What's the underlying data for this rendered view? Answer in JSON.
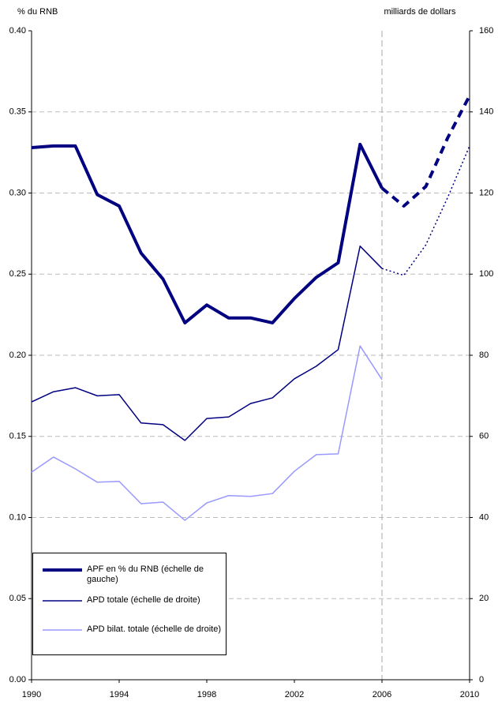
{
  "chart_data": {
    "type": "line",
    "ylabel": "% du RNB",
    "y2label": "milliards de dollars",
    "x": [
      1990,
      1991,
      1992,
      1993,
      1994,
      1995,
      1996,
      1997,
      1998,
      1999,
      2000,
      2001,
      2002,
      2003,
      2004,
      2005,
      2006,
      2007,
      2008,
      2009,
      2010
    ],
    "xlim": [
      1990,
      2010
    ],
    "xticks": [
      1990,
      1994,
      1998,
      2002,
      2006,
      2010
    ],
    "ylim": [
      0,
      0.4
    ],
    "yticks": [
      {
        "value": 0,
        "label": "0.00"
      },
      0.05,
      {
        "value": 0.1,
        "label": "0.10"
      },
      0.15,
      {
        "value": 0.2,
        "label": "0.20"
      },
      0.25,
      {
        "value": 0.3,
        "label": "0.30"
      },
      0.35,
      {
        "value": 0.4,
        "label": "0.40"
      }
    ],
    "y2lim": [
      0,
      160
    ],
    "y2ticks": [
      0,
      20,
      40,
      60,
      80,
      100,
      120,
      140,
      160
    ],
    "grid": true,
    "vline": 2006,
    "series": [
      {
        "name": "APF en % du RNB (échelle de gauche)",
        "color": "#000080",
        "axis": "y",
        "line_width": 4,
        "dash": "solid",
        "values": [
          0.328,
          0.329,
          0.329,
          0.299,
          0.292,
          0.263,
          0.247,
          0.22,
          0.231,
          0.223,
          0.223,
          0.22,
          0.235,
          0.248,
          0.257,
          0.33,
          0.303,
          null,
          null,
          null,
          null
        ]
      },
      {
        "name": "APD totale (échelle de droite)",
        "color": "#000080",
        "axis": "y2",
        "line_width": 1.5,
        "dash": "solid",
        "values": [
          68.5,
          71,
          72,
          70,
          70.3,
          63.3,
          62.9,
          59,
          64.4,
          64.8,
          68.1,
          69.5,
          74.2,
          77.3,
          81.4,
          106.9,
          101.4,
          null,
          null,
          null,
          null
        ]
      },
      {
        "name": "APD bilat. totale (échelle de droite)",
        "color": "#9999ff",
        "axis": "y2",
        "line_width": 1.5,
        "dash": "solid",
        "values": [
          51.2,
          54.9,
          52,
          48.7,
          48.9,
          43.4,
          43.8,
          39.3,
          43.6,
          45.4,
          45.2,
          45.9,
          51.4,
          55.5,
          55.7,
          82.3,
          74,
          null,
          null,
          null,
          null
        ]
      },
      {
        "color": "#000080",
        "axis": "y",
        "line_width": 4,
        "dash": "dashed",
        "values": [
          null,
          null,
          null,
          null,
          null,
          null,
          null,
          null,
          null,
          null,
          null,
          null,
          null,
          null,
          null,
          null,
          0.303,
          0.292,
          0.304,
          0.334,
          0.36
        ]
      },
      {
        "color": "#000080",
        "axis": "y2",
        "line_width": 1.5,
        "dash": "dotted",
        "values": [
          null,
          null,
          null,
          null,
          null,
          null,
          null,
          null,
          null,
          null,
          null,
          null,
          null,
          null,
          null,
          null,
          101.4,
          99.7,
          107.2,
          118.9,
          131.6
        ]
      }
    ]
  }
}
